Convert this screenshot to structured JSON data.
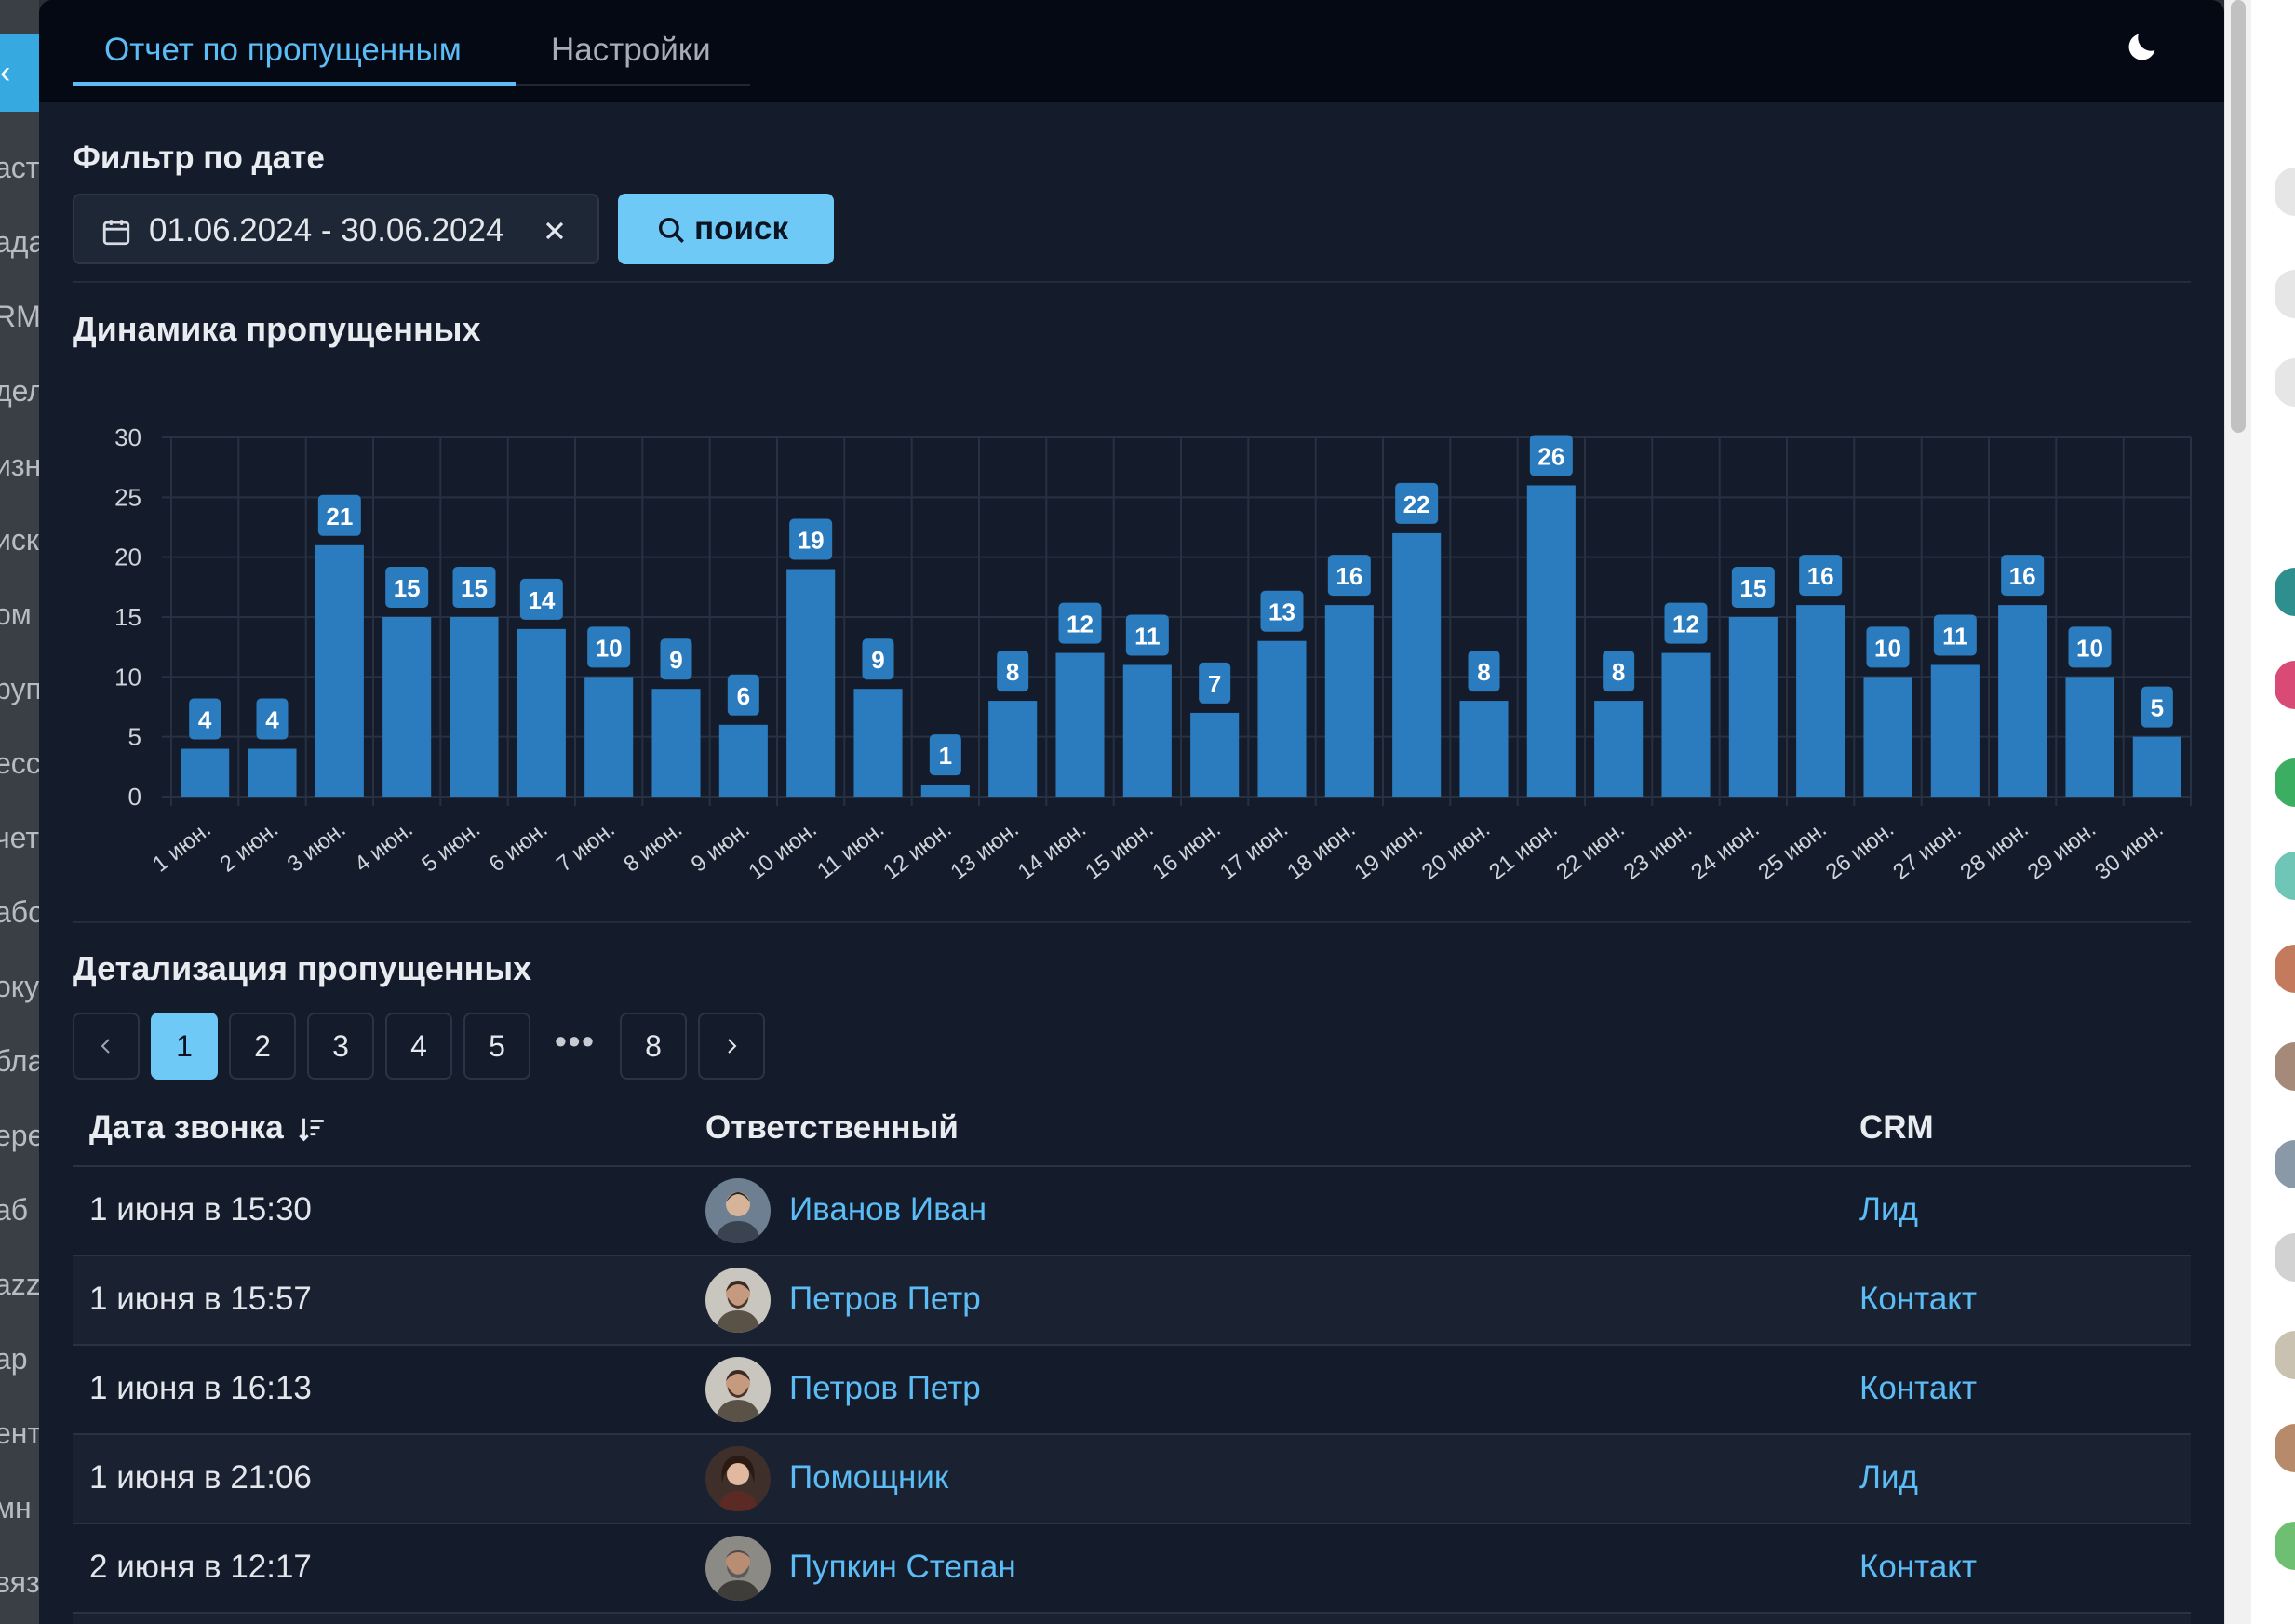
{
  "background": {
    "left_strip_items": [
      "аст",
      "ада",
      "RM",
      "дел",
      "изн",
      "иск",
      "ом",
      "руп",
      "есс",
      "чет",
      "або",
      "оку",
      "бла",
      "ере",
      "аб",
      "azz",
      "ар",
      "ент",
      "мн",
      "вяз"
    ],
    "left_toggle_glyph": "‹"
  },
  "tabs": [
    {
      "label": "Отчет по пропущенным",
      "active": true
    },
    {
      "label": "Настройки",
      "active": false
    }
  ],
  "filter": {
    "label": "Фильтр по дате",
    "date_range": "01.06.2024 - 30.06.2024",
    "search_label": "поиск"
  },
  "chart_section": {
    "title": "Динамика пропущенных"
  },
  "chart_data": {
    "type": "bar",
    "title": "Динамика пропущенных",
    "categories": [
      "1 июн.",
      "2 июн.",
      "3 июн.",
      "4 июн.",
      "5 июн.",
      "6 июн.",
      "7 июн.",
      "8 июн.",
      "9 июн.",
      "10 июн.",
      "11 июн.",
      "12 июн.",
      "13 июн.",
      "14 июн.",
      "15 июн.",
      "16 июн.",
      "17 июн.",
      "18 июн.",
      "19 июн.",
      "20 июн.",
      "21 июн.",
      "22 июн.",
      "23 июн.",
      "24 июн.",
      "25 июн.",
      "26 июн.",
      "27 июн.",
      "28 июн.",
      "29 июн.",
      "30 июн."
    ],
    "values": [
      4,
      4,
      21,
      15,
      15,
      14,
      10,
      9,
      6,
      19,
      9,
      1,
      8,
      12,
      11,
      7,
      13,
      16,
      22,
      8,
      26,
      8,
      12,
      15,
      16,
      10,
      11,
      16,
      10,
      5
    ],
    "ylim": [
      0,
      30
    ],
    "yticks": [
      0,
      5,
      10,
      15,
      20,
      25,
      30
    ],
    "grid": true,
    "data_labels": true,
    "xlabel": "",
    "ylabel": "",
    "bar_color": "#2b7bbf",
    "label_color": "#2b7bbf"
  },
  "details": {
    "title": "Детализация пропущенных",
    "pagination": {
      "pages": [
        "1",
        "2",
        "3",
        "4",
        "5"
      ],
      "ellipsis": "•••",
      "last": "8",
      "current": "1"
    },
    "columns": {
      "date": "Дата звонка",
      "responsible": "Ответственный",
      "crm": "CRM"
    },
    "rows": [
      {
        "date": "1 июня в 15:30",
        "responsible": "Иванов Иван",
        "crm": "Лид"
      },
      {
        "date": "1 июня в 15:57",
        "responsible": "Петров Петр",
        "crm": "Контакт"
      },
      {
        "date": "1 июня в 16:13",
        "responsible": "Петров Петр",
        "crm": "Контакт"
      },
      {
        "date": "1 июня в 21:06",
        "responsible": "Помощник",
        "crm": "Лид"
      },
      {
        "date": "2 июня в 12:17",
        "responsible": "Пупкин Степан",
        "crm": "Контакт"
      }
    ]
  },
  "colors": {
    "accent": "#5cbcf5",
    "button": "#6ec9f7",
    "background": "#141c2b",
    "header": "#050913"
  }
}
